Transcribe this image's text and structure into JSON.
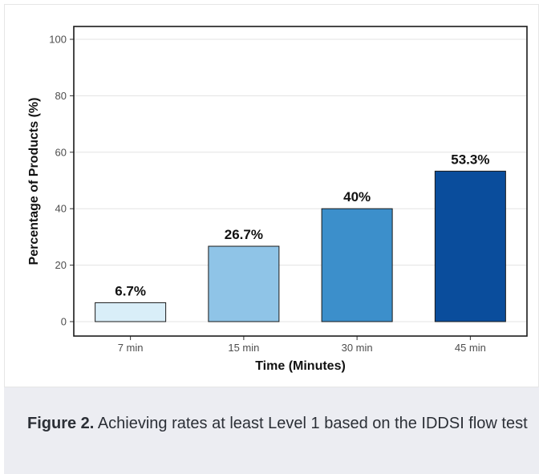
{
  "chart_data": {
    "type": "bar",
    "categories": [
      "7 min",
      "15 min",
      "30 min",
      "45 min"
    ],
    "values": [
      6.7,
      26.7,
      40,
      53.3
    ],
    "data_labels": [
      "6.7%",
      "26.7%",
      "40%",
      "53.3%"
    ],
    "xlabel": "Time (Minutes)",
    "ylabel": "Percentage of Products (%)",
    "ylim": [
      0,
      100
    ],
    "yticks": [
      0,
      20,
      40,
      60,
      80,
      100
    ],
    "grid": true,
    "bar_colors": [
      "#d9eef8",
      "#8fc4e7",
      "#3c8fcb",
      "#0a4d9c"
    ]
  },
  "caption": {
    "label": "Figure 2.",
    "text": " Achieving rates at least Level 1 based on the IDDSI flow test"
  }
}
